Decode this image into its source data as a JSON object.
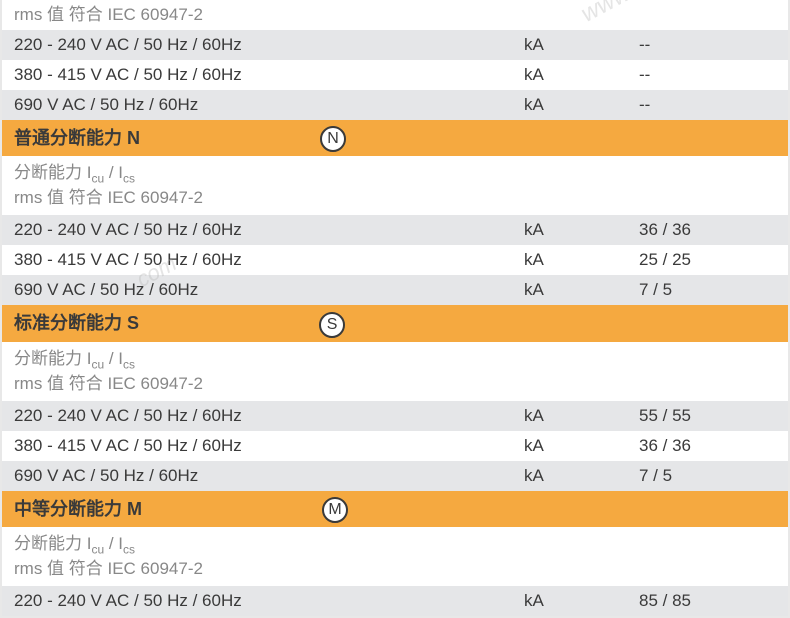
{
  "colors": {
    "row_gray_bg": "#e5e6e8",
    "row_white_bg": "#ffffff",
    "row_orange_bg": "#f5a940",
    "text_primary": "#3a3a3a",
    "text_muted": "#888888",
    "border": "#e8e8e8"
  },
  "typography": {
    "body_font": "Arial, Microsoft YaHei, sans-serif",
    "row_fontsize": 17,
    "header_fontsize": 18,
    "subscript_fontsize": 12
  },
  "section_top": {
    "label": "rms 值 符合 IEC 60947-2",
    "rows": [
      {
        "label": "220 - 240 V AC / 50 Hz / 60Hz",
        "unit": "kA",
        "value": "--"
      },
      {
        "label": "380 - 415 V AC / 50 Hz / 60Hz",
        "unit": "kA",
        "value": "--"
      },
      {
        "label": "690 V AC / 50 Hz / 60Hz",
        "unit": "kA",
        "value": "--"
      }
    ]
  },
  "section_n": {
    "title": "普通分断能力 N",
    "badge": "N",
    "sub1_prefix": "分断能力 I",
    "sub1_s1": "cu",
    "sub1_mid": " / I",
    "sub1_s2": "cs",
    "sub2": "rms 值 符合 IEC 60947-2",
    "rows": [
      {
        "label": "220 - 240 V AC / 50 Hz / 60Hz",
        "unit": "kA",
        "value": "36 / 36"
      },
      {
        "label": "380 - 415 V AC / 50 Hz / 60Hz",
        "unit": "kA",
        "value": "25 / 25"
      },
      {
        "label": "690 V AC / 50 Hz / 60Hz",
        "unit": "kA",
        "value": "7 / 5"
      }
    ]
  },
  "section_s": {
    "title": "标准分断能力 S",
    "badge": "S",
    "sub1_prefix": "分断能力 I",
    "sub1_s1": "cu",
    "sub1_mid": " / I",
    "sub1_s2": "cs",
    "sub2": "rms 值 符合 IEC 60947-2",
    "rows": [
      {
        "label": "220 - 240 V AC / 50 Hz / 60Hz",
        "unit": "kA",
        "value": "55 / 55"
      },
      {
        "label": "380 - 415 V AC / 50 Hz / 60Hz",
        "unit": "kA",
        "value": "36 / 36"
      },
      {
        "label": "690 V AC / 50 Hz / 60Hz",
        "unit": "kA",
        "value": "7 / 5"
      }
    ]
  },
  "section_m": {
    "title": "中等分断能力 M",
    "badge": "M",
    "sub1_prefix": "分断能力 I",
    "sub1_s1": "cu",
    "sub1_mid": " / I",
    "sub1_s2": "cs",
    "sub2": "rms 值 符合 IEC 60947-2",
    "rows": [
      {
        "label": "220 - 240 V AC / 50 Hz / 60Hz",
        "unit": "kA",
        "value": "85 / 85"
      }
    ]
  },
  "watermarks": {
    "wm1": "www",
    "wm2": ".com"
  }
}
